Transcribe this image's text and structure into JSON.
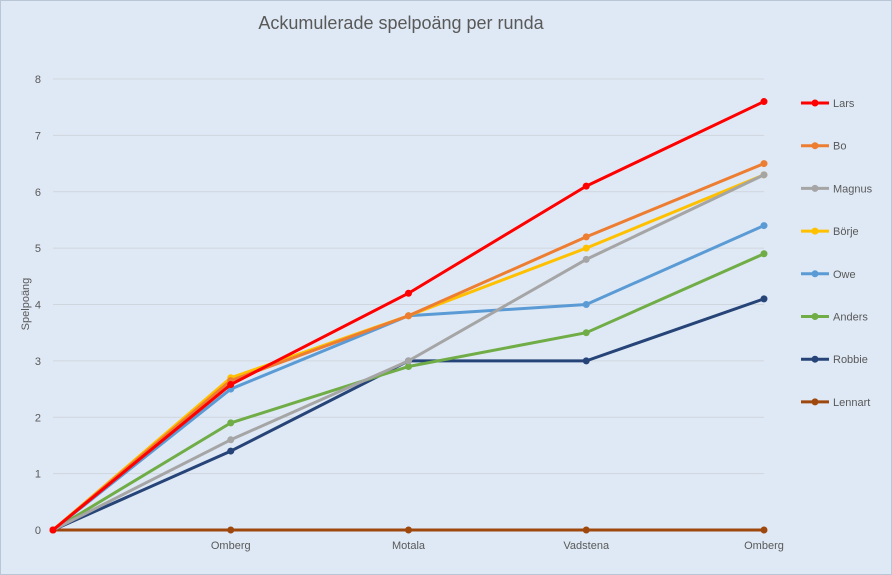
{
  "chart_data": {
    "type": "line",
    "title": "Ackumulerade spelpoäng per runda",
    "xlabel": "",
    "ylabel": "Spelpoäng",
    "ylim": [
      0,
      8
    ],
    "yticks": [
      "0",
      "1",
      "2",
      "3",
      "4",
      "5",
      "6",
      "7",
      "8"
    ],
    "categories": [
      "",
      "Omberg",
      "Motala",
      "Vadstena",
      "Omberg"
    ],
    "grid": true,
    "legend": "right",
    "series": [
      {
        "name": "Lars",
        "color": "#ff0000",
        "values": [
          0,
          2.58,
          4.2,
          6.1,
          7.6
        ]
      },
      {
        "name": "Bo",
        "color": "#ed7d31",
        "values": [
          0,
          2.65,
          3.8,
          5.2,
          6.5
        ]
      },
      {
        "name": "Magnus",
        "color": "#a5a5a5",
        "values": [
          0,
          1.6,
          3.0,
          4.8,
          6.3
        ]
      },
      {
        "name": "Börje",
        "color": "#ffc000",
        "values": [
          0,
          2.7,
          3.8,
          5.0,
          6.3
        ]
      },
      {
        "name": "Owe",
        "color": "#5b9bd5",
        "values": [
          0,
          2.5,
          3.8,
          4.0,
          5.4
        ]
      },
      {
        "name": "Anders",
        "color": "#70ad47",
        "values": [
          0,
          1.9,
          2.9,
          3.5,
          4.9
        ]
      },
      {
        "name": "Robbie",
        "color": "#264478",
        "values": [
          0,
          1.4,
          3.0,
          3.0,
          4.1
        ]
      },
      {
        "name": "Lennart",
        "color": "#9e480e",
        "values": [
          0,
          0,
          0,
          0,
          0
        ]
      }
    ]
  }
}
